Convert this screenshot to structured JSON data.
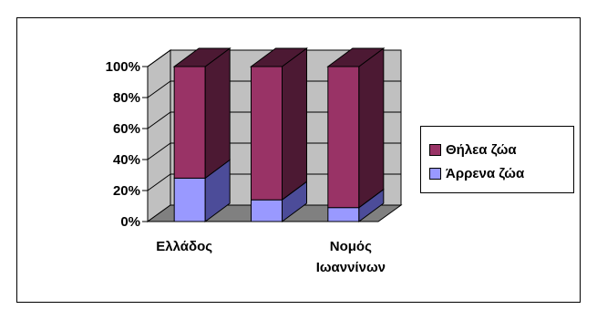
{
  "chart_data": {
    "type": "bar",
    "subtype": "stacked-100-3d",
    "title": "",
    "xlabel": "",
    "ylabel": "",
    "ylim": [
      0,
      100
    ],
    "y_ticks": [
      "0%",
      "20%",
      "40%",
      "60%",
      "80%",
      "100%"
    ],
    "categories": [
      "Ελλάδος",
      "",
      "Νομός\nΙωαννίνων"
    ],
    "category_labels": [
      {
        "lines": [
          "Ελλάδος"
        ]
      },
      {
        "lines": []
      },
      {
        "lines": [
          "Νομός",
          "Ιωαννίνων"
        ]
      }
    ],
    "series": [
      {
        "name": "Άρρενα ζώα",
        "values": [
          28,
          14,
          9
        ],
        "color": "#9999ff",
        "side_color": "#4c4c99"
      },
      {
        "name": "Θήλεα ζώα",
        "values": [
          72,
          86,
          91
        ],
        "color": "#993366",
        "side_color": "#4c1933"
      }
    ],
    "grid": true,
    "legend_position": "right",
    "wall_color": "#c0c0c0",
    "floor_color": "#808080"
  },
  "legend": {
    "items": [
      {
        "label": "Θήλεα ζώα",
        "color": "#993366"
      },
      {
        "label": "Άρρενα ζώα",
        "color": "#9999ff"
      }
    ]
  }
}
